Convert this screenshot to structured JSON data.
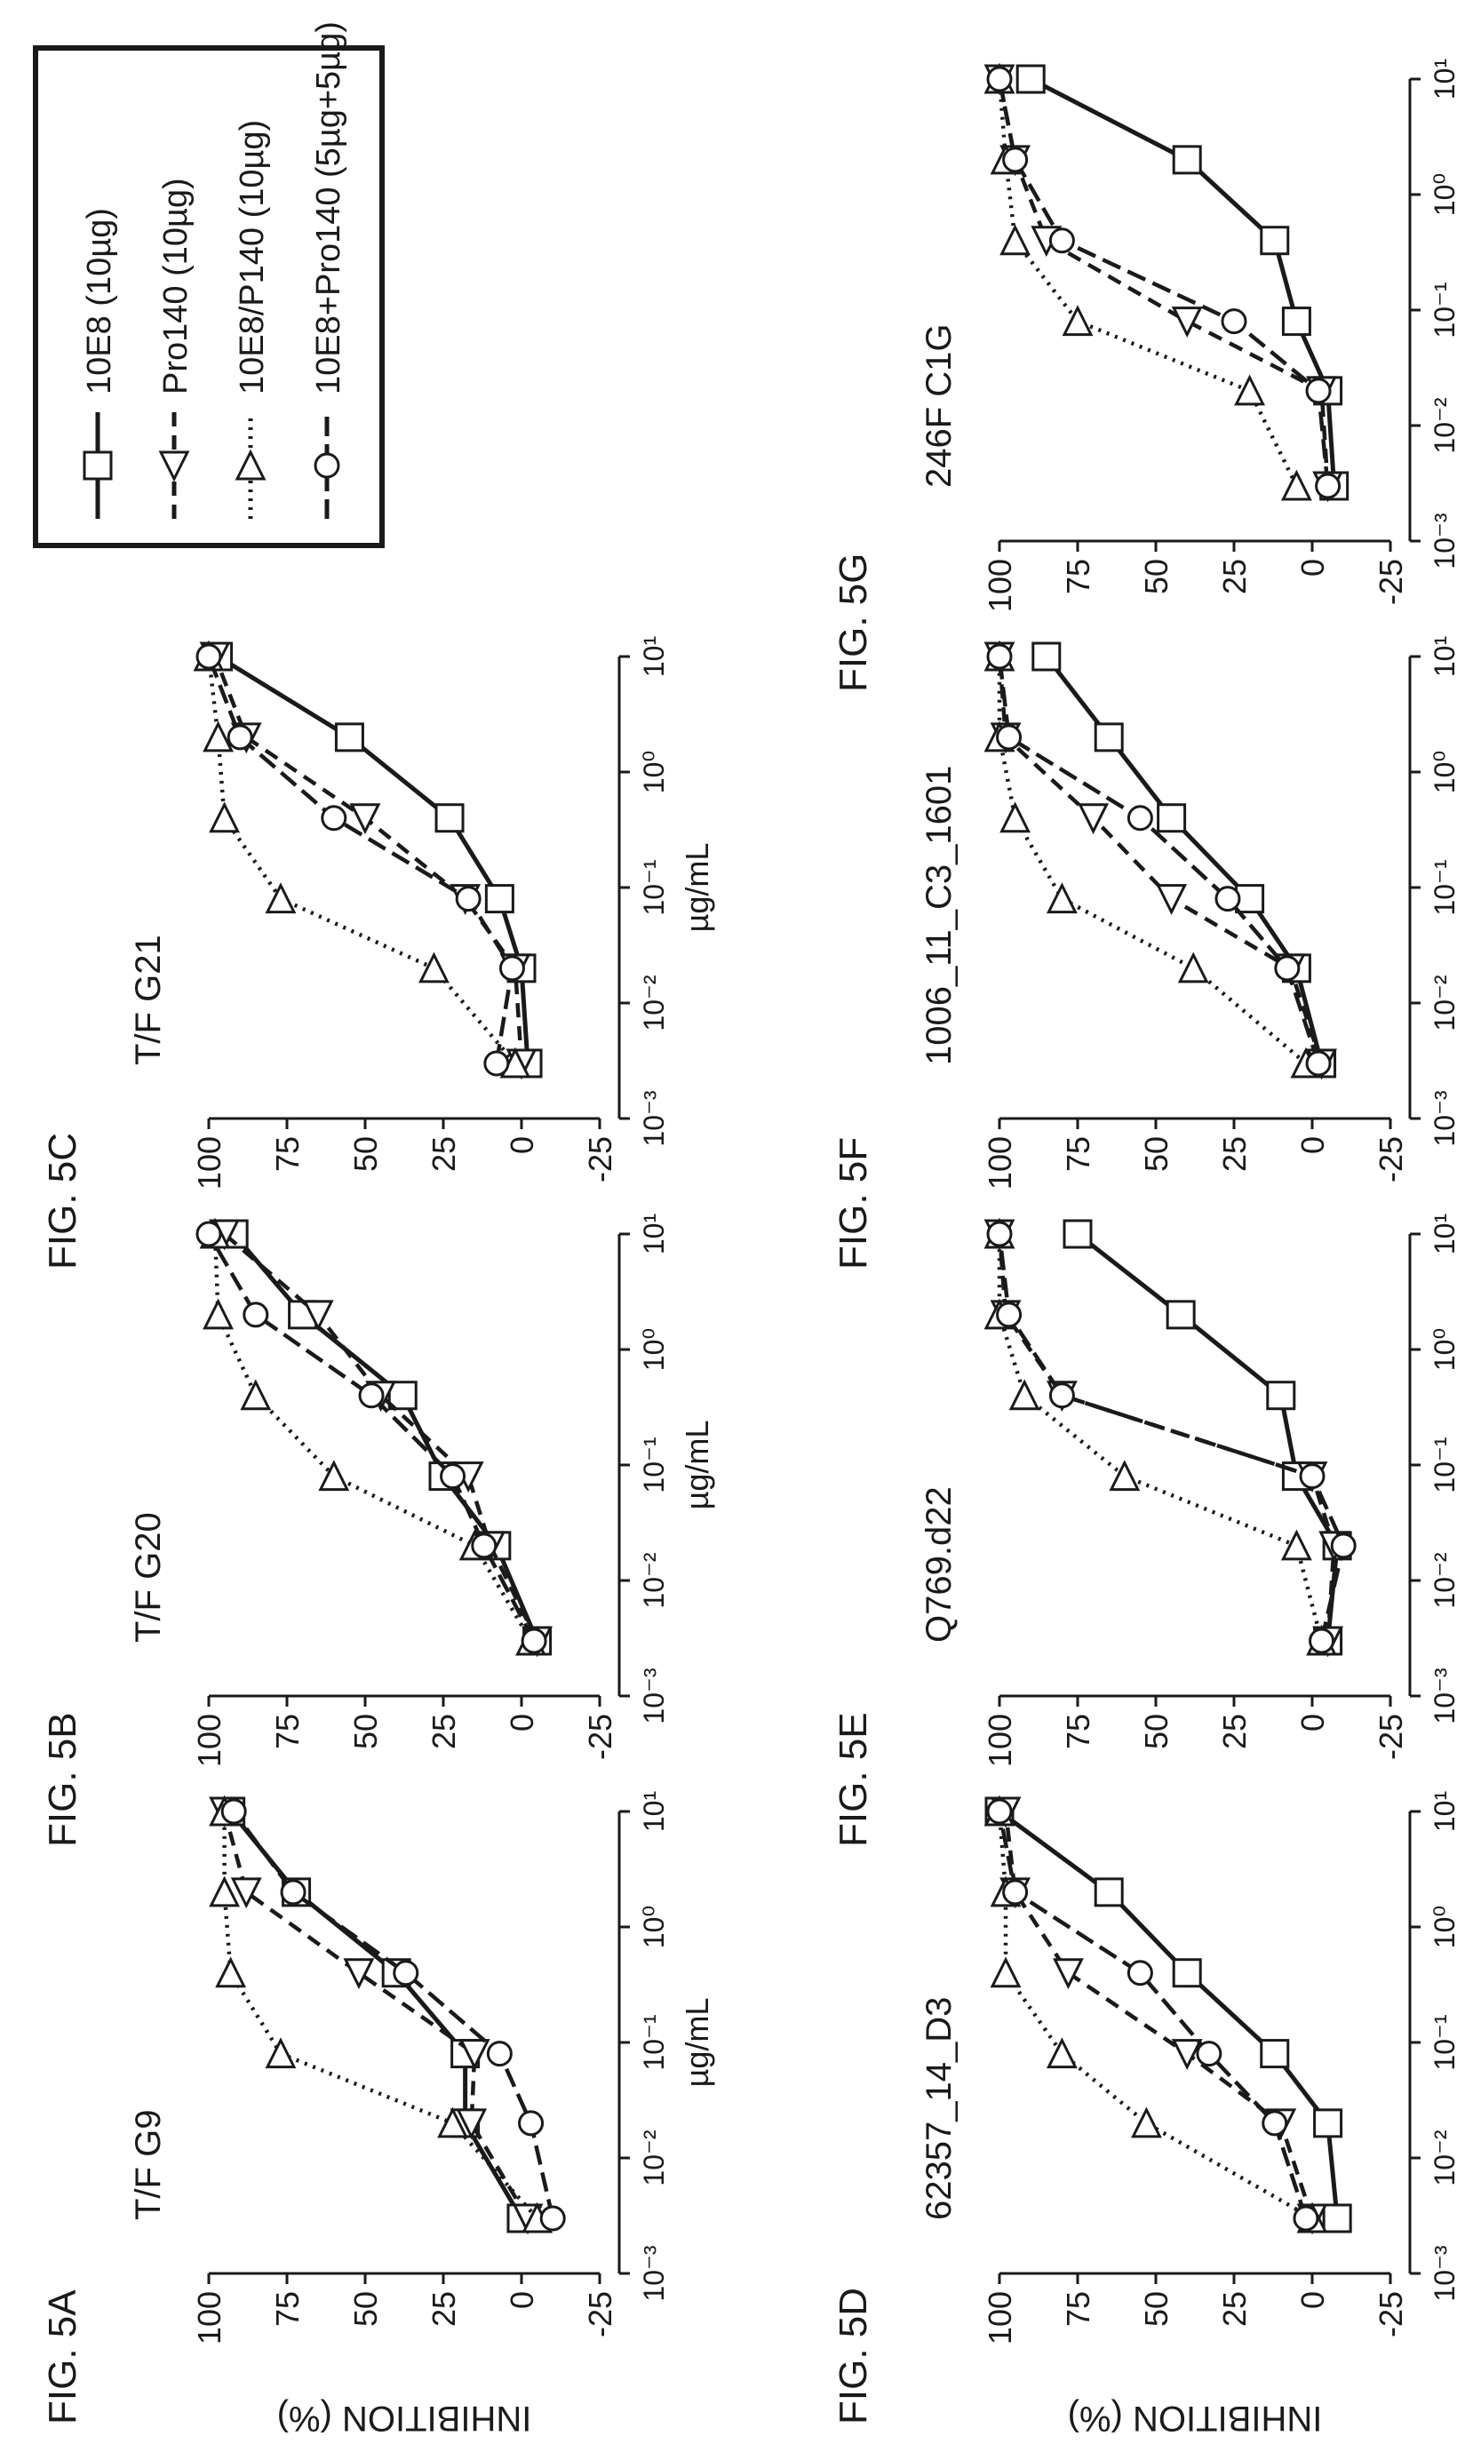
{
  "y_axis_label": "INHIBITION (%)",
  "x_axis_label": "µg/mL",
  "legend": {
    "placement": "top-right",
    "entries": [
      {
        "series": "10E8",
        "label": "10E8 (10µg)"
      },
      {
        "series": "Pro140",
        "label": "Pro140 (10µg)"
      },
      {
        "series": "10E8/P140",
        "label": "10E8/P140 (10µg)"
      },
      {
        "series": "10E8+Pro140",
        "label": "10E8+Pro140 (5µg+5µg)"
      }
    ]
  },
  "styles": {
    "10E8": {
      "marker": "square",
      "dash": "solid",
      "color": "#1a1a1a"
    },
    "Pro140": {
      "marker": "triangle-up",
      "dash": "dashed",
      "color": "#1a1a1a"
    },
    "10E8/P140": {
      "marker": "triangle-down",
      "dash": "dotted",
      "color": "#1a1a1a"
    },
    "10E8+Pro140": {
      "marker": "circle",
      "dash": "long-dash",
      "color": "#1a1a1a"
    }
  },
  "chart_data": [
    {
      "type": "line",
      "figure_label": "FIG. 5A",
      "title": "T/F G9",
      "x_scale": "log",
      "xlim": [
        0.001,
        10
      ],
      "ylim": [
        -25,
        100
      ],
      "x_ticks": [
        "10⁻³",
        "10⁻²",
        "10⁻¹",
        "10⁰",
        "10¹"
      ],
      "y_ticks": [
        "100",
        "75",
        "50",
        "25",
        "0",
        "-25"
      ],
      "x": [
        0.003,
        0.02,
        0.08,
        0.4,
        2,
        10
      ],
      "series": [
        {
          "name": "10E8",
          "values": [
            0,
            18,
            18,
            40,
            72,
            93
          ]
        },
        {
          "name": "Pro140",
          "values": [
            -2,
            16,
            15,
            52,
            88,
            95
          ]
        },
        {
          "name": "10E8/P140",
          "values": [
            -5,
            22,
            77,
            93,
            95,
            95
          ]
        },
        {
          "name": "10E8+Pro140",
          "values": [
            -10,
            -3,
            7,
            37,
            73,
            92
          ]
        }
      ]
    },
    {
      "type": "line",
      "figure_label": "FIG. 5B",
      "title": "T/F G20",
      "x_scale": "log",
      "xlim": [
        0.001,
        10
      ],
      "ylim": [
        -25,
        100
      ],
      "x_ticks": [
        "10⁻³",
        "10⁻²",
        "10⁻¹",
        "10⁰",
        "10¹"
      ],
      "y_ticks": [
        "100",
        "75",
        "50",
        "25",
        "0",
        "-25"
      ],
      "x": [
        0.003,
        0.02,
        0.08,
        0.4,
        2,
        10
      ],
      "series": [
        {
          "name": "10E8",
          "values": [
            -5,
            8,
            25,
            38,
            70,
            92
          ]
        },
        {
          "name": "Pro140",
          "values": [
            -5,
            10,
            17,
            45,
            65,
            95
          ]
        },
        {
          "name": "10E8/P140",
          "values": [
            -3,
            15,
            60,
            85,
            97,
            98
          ]
        },
        {
          "name": "10E8+Pro140",
          "values": [
            -4,
            12,
            22,
            48,
            85,
            100
          ]
        }
      ]
    },
    {
      "type": "line",
      "figure_label": "FIG. 5C",
      "title": "T/F G21",
      "x_scale": "log",
      "xlim": [
        0.001,
        10
      ],
      "ylim": [
        -25,
        100
      ],
      "x_ticks": [
        "10⁻³",
        "10⁻²",
        "10⁻¹",
        "10⁰",
        "10¹"
      ],
      "y_ticks": [
        "100",
        "75",
        "50",
        "25",
        "0",
        "-25"
      ],
      "x": [
        0.003,
        0.02,
        0.08,
        0.4,
        2,
        10
      ],
      "series": [
        {
          "name": "10E8",
          "values": [
            -2,
            0,
            7,
            23,
            55,
            97
          ]
        },
        {
          "name": "Pro140",
          "values": [
            0,
            2,
            18,
            50,
            88,
            98
          ]
        },
        {
          "name": "10E8/P140",
          "values": [
            2,
            28,
            77,
            95,
            97,
            100
          ]
        },
        {
          "name": "10E8+Pro140",
          "values": [
            8,
            3,
            17,
            60,
            90,
            100
          ]
        }
      ]
    },
    {
      "type": "line",
      "figure_label": "FIG. 5D",
      "title": "62357_14_D3",
      "x_scale": "log",
      "xlim": [
        0.001,
        10
      ],
      "ylim": [
        -25,
        100
      ],
      "x_ticks": [
        "10⁻³",
        "10⁻²",
        "10⁻¹",
        "10⁰",
        "10¹"
      ],
      "y_ticks": [
        "100",
        "75",
        "50",
        "25",
        "0",
        "-25"
      ],
      "x": [
        0.003,
        0.02,
        0.08,
        0.4,
        2,
        10
      ],
      "series": [
        {
          "name": "10E8",
          "values": [
            -8,
            -5,
            12,
            40,
            65,
            100
          ]
        },
        {
          "name": "Pro140",
          "values": [
            0,
            10,
            40,
            78,
            95,
            98
          ]
        },
        {
          "name": "10E8/P140",
          "values": [
            0,
            53,
            80,
            98,
            98,
            100
          ]
        },
        {
          "name": "10E8+Pro140",
          "values": [
            2,
            12,
            33,
            55,
            95,
            100
          ]
        }
      ]
    },
    {
      "type": "line",
      "figure_label": "FIG. 5E",
      "title": "Q769.d22",
      "x_scale": "log",
      "xlim": [
        0.001,
        10
      ],
      "ylim": [
        -25,
        100
      ],
      "x_ticks": [
        "10⁻³",
        "10⁻²",
        "10⁻¹",
        "10⁰",
        "10¹"
      ],
      "y_ticks": [
        "100",
        "75",
        "50",
        "25",
        "0",
        "-25"
      ],
      "x": [
        0.003,
        0.02,
        0.08,
        0.4,
        2,
        10
      ],
      "series": [
        {
          "name": "10E8",
          "values": [
            -5,
            -8,
            5,
            10,
            42,
            75
          ]
        },
        {
          "name": "Pro140",
          "values": [
            -5,
            -7,
            0,
            80,
            98,
            100
          ]
        },
        {
          "name": "10E8/P140",
          "values": [
            -3,
            5,
            60,
            92,
            100,
            100
          ]
        },
        {
          "name": "10E8+Pro140",
          "values": [
            -3,
            -10,
            0,
            80,
            97,
            100
          ]
        }
      ]
    },
    {
      "type": "line",
      "figure_label": "FIG. 5F",
      "title": "1006_11_C3_1601",
      "x_scale": "log",
      "xlim": [
        0.001,
        10
      ],
      "ylim": [
        -25,
        100
      ],
      "x_ticks": [
        "10⁻³",
        "10⁻²",
        "10⁻¹",
        "10⁰",
        "10¹"
      ],
      "y_ticks": [
        "100",
        "75",
        "50",
        "25",
        "0",
        "-25"
      ],
      "x": [
        0.003,
        0.02,
        0.08,
        0.4,
        2,
        10
      ],
      "series": [
        {
          "name": "10E8",
          "values": [
            -3,
            5,
            20,
            45,
            65,
            85
          ]
        },
        {
          "name": "Pro140",
          "values": [
            -3,
            7,
            45,
            70,
            98,
            100
          ]
        },
        {
          "name": "10E8/P140",
          "values": [
            2,
            38,
            80,
            95,
            100,
            100
          ]
        },
        {
          "name": "10E8+Pro140",
          "values": [
            -2,
            8,
            27,
            55,
            97,
            100
          ]
        }
      ]
    },
    {
      "type": "line",
      "figure_label": "FIG. 5G",
      "title": "246F C1G",
      "x_scale": "log",
      "xlim": [
        0.001,
        10
      ],
      "ylim": [
        -25,
        100
      ],
      "x_ticks": [
        "10⁻³",
        "10⁻²",
        "10⁻¹",
        "10⁰",
        "10¹"
      ],
      "y_ticks": [
        "100",
        "75",
        "50",
        "25",
        "0",
        "-25"
      ],
      "x": [
        0.003,
        0.02,
        0.08,
        0.4,
        2,
        10
      ],
      "series": [
        {
          "name": "10E8",
          "values": [
            -7,
            -5,
            5,
            12,
            40,
            90
          ]
        },
        {
          "name": "Pro140",
          "values": [
            -5,
            -3,
            40,
            85,
            95,
            100
          ]
        },
        {
          "name": "10E8/P140",
          "values": [
            5,
            20,
            75,
            95,
            98,
            100
          ]
        },
        {
          "name": "10E8+Pro140",
          "values": [
            -5,
            -2,
            25,
            80,
            95,
            100
          ]
        }
      ]
    }
  ]
}
